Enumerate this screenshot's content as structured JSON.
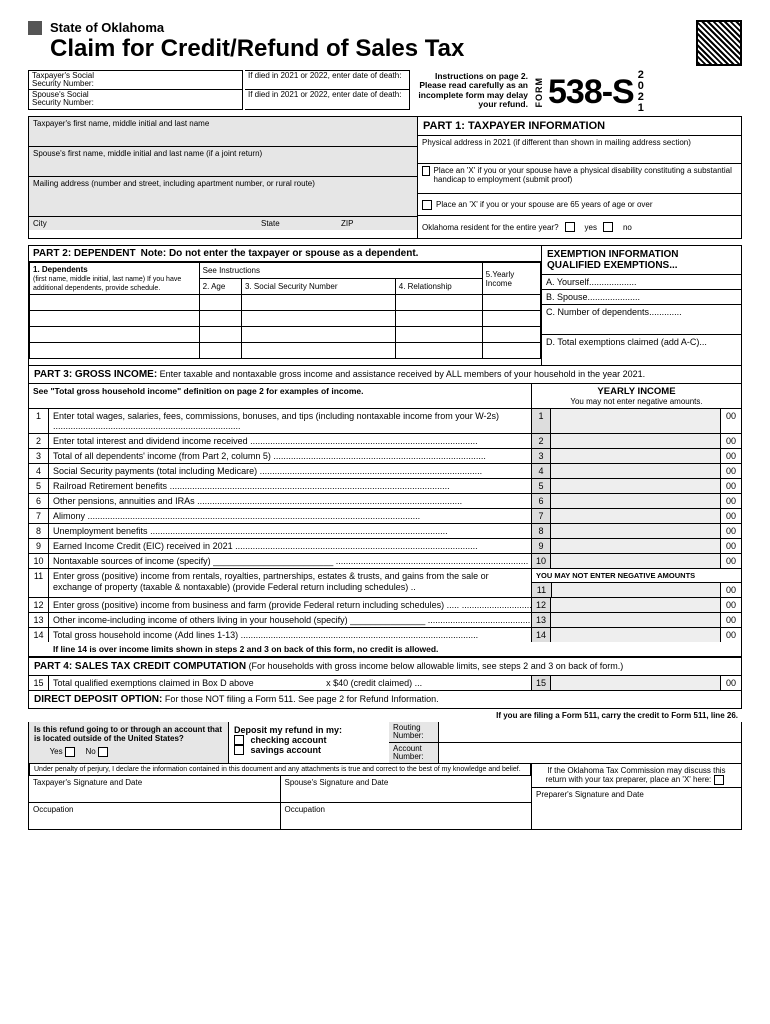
{
  "header": {
    "state": "State of Oklahoma",
    "title": "Claim for Credit/Refund of Sales Tax",
    "form_vert": "FORM",
    "form_number": "538-S",
    "year_digits": [
      "2",
      "0",
      "2",
      "1"
    ],
    "instructions": "Instructions on page 2. Please read carefully as an incomplete form may delay your refund."
  },
  "ssn": {
    "taxpayer_label": "Taxpayer's Social Security Number:",
    "spouse_label": "Spouse's Social Security Number:",
    "death1": "If died in 2021 or 2022, enter date of death:",
    "death2": "If died in 2021 or 2022, enter date of death:"
  },
  "taxpayer_fields": {
    "name": "Taxpayer's first name, middle initial and last name",
    "spouse": "Spouse's first name, middle initial and last name (if a joint return)",
    "mailing": "Mailing address (number and street, including apartment number, or rural route)",
    "city": "City",
    "state": "State",
    "zip": "ZIP"
  },
  "part1": {
    "title": "PART 1: TAXPAYER INFORMATION",
    "phys": "Physical address in 2021 (if different than shown in mailing address section)",
    "disability": "Place an 'X' if you or your spouse have a physical disability constituting a substantial handicap to employment (submit proof)",
    "age65": "Place an 'X' if you or your spouse are 65 years of age or over",
    "resident": "Oklahoma resident for the entire year?",
    "yes": "yes",
    "no": "no"
  },
  "part2": {
    "title": "PART 2: DEPENDENT",
    "note": "Note: Do not enter the taxpayer or spouse as a dependent.",
    "col1": "1. Dependents",
    "col1_sub": "(first name, middle initial, last name) If you have additional dependents, provide schedule.",
    "see_instr": "See Instructions",
    "col2": "2. Age",
    "col3": "3. Social Security Number",
    "col4": "4. Relationship",
    "col5": "5.Yearly Income"
  },
  "exemptions": {
    "title1": "EXEMPTION INFORMATION",
    "title2": "QUALIFIED EXEMPTIONS...",
    "a": "A. Yourself",
    "b": "B. Spouse",
    "c": "C. Number of dependents",
    "d": "D. Total exemptions claimed  (add A-C)"
  },
  "part3": {
    "title": "PART 3: GROSS INCOME:",
    "subtitle": "Enter taxable and nontaxable gross income and assistance received by ALL members of your household in the year 2021.",
    "see_def": "See \"Total gross household income\" definition on page 2 for examples of income.",
    "yearly": "YEARLY INCOME",
    "no_neg": "You may not enter negative amounts.",
    "no_neg_caps": "YOU MAY NOT ENTER NEGATIVE AMOUNTS",
    "lines": [
      "Enter total wages, salaries, fees, commissions, bonuses, and tips (including nontaxable income from your W-2s)",
      "Enter total interest and dividend income received",
      "Total of all dependents' income (from Part 2, column 5)",
      "Social Security payments (total including Medicare)",
      "Railroad Retirement benefits",
      "Other pensions, annuities and IRAs",
      "Alimony",
      "Unemployment benefits",
      "Earned Income Credit (EIC) received in 2021",
      "Nontaxable sources of income (specify) ________________________",
      "Enter gross (positive) income from rentals, royalties, partnerships, estates & trusts, and gains from the sale or exchange of property (taxable & nontaxable) (provide Federal return including schedules) ..",
      "Enter gross (positive) income from business and farm (provide Federal return including schedules) .....",
      "Other income-including income of others living in your household (specify) _______________",
      "Total gross household income (Add lines 1-13)"
    ],
    "foot": "If line 14 is over income limits shown in steps 2 and 3 on back of this form, no credit is allowed."
  },
  "part4": {
    "title": "PART 4:  SALES TAX CREDIT COMPUTATION",
    "subtitle": "(For households with gross income below allowable limits, see steps 2 and 3 on back of form.)",
    "line15": "Total qualified exemptions claimed in Box D above",
    "credit": "x  $40 (credit claimed) ...",
    "num15": "15",
    "cents": "00"
  },
  "dd": {
    "title": "DIRECT DEPOSIT OPTION:",
    "subtitle": "For those NOT filing a Form 511. See page 2 for Refund Information.",
    "carry": "If you are filing a Form 511, carry the credit to Form 511, line 26.",
    "q": "Is this refund going to or through an account that is located outside of the United States?",
    "yes": "Yes",
    "no": "No",
    "deposit": "Deposit my refund in my:",
    "checking": "checking account",
    "savings": "savings account",
    "routing": "Routing Number:",
    "account": "Account Number:"
  },
  "sig": {
    "perjury": "Under penalty of perjury, I declare the information contained in this document and any attachments is true and correct to the best of my knowledge and belief.",
    "tax_sig": "Taxpayer's Signature and Date",
    "sp_sig": "Spouse's Signature and Date",
    "occ": "Occupation",
    "prep_note": "If the Oklahoma Tax Commission may discuss this return with your tax preparer, place an 'X' here:",
    "prep_sig": "Preparer's Signature and Date"
  }
}
